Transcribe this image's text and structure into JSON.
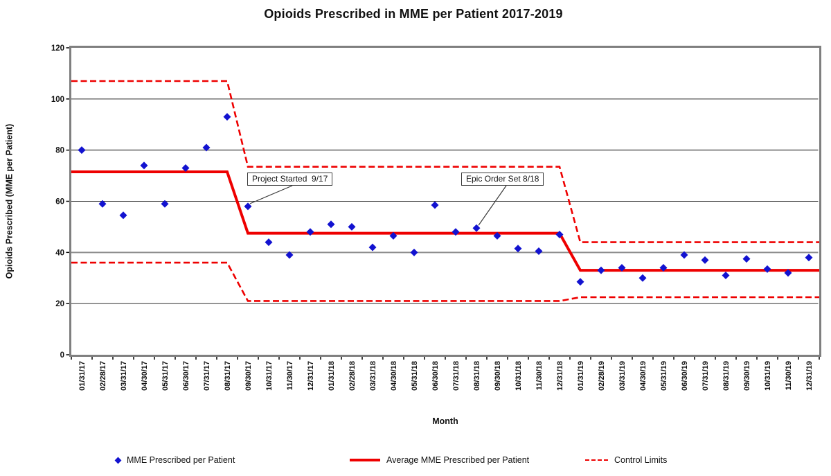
{
  "title": "Opioids Prescribed in MME per Patient 2017-2019",
  "y_axis": {
    "label": "Opioids Prescribed (MME per Patient)",
    "min": 0,
    "max": 120,
    "step": 20,
    "tick_labels": [
      "0",
      "20",
      "40",
      "60",
      "80",
      "100",
      "120"
    ]
  },
  "x_axis": {
    "label": "Month"
  },
  "colors": {
    "points": "#1212D0",
    "lines": "#EE0000",
    "grid": "#2e2e2e",
    "grid_alt": "#8c8c8c",
    "border": "#7f7f7f",
    "tick": "#000000"
  },
  "chart_data": {
    "type": "scatter",
    "title": "Opioids Prescribed in MME per Patient 2017-2019",
    "xlabel": "Month",
    "ylabel": "Opioids Prescribed (MME per Patient)",
    "ylim": [
      0,
      120
    ],
    "grid": true,
    "legend_position": "bottom",
    "categories": [
      "01/31/17",
      "02/28/17",
      "03/31/17",
      "04/30/17",
      "05/31/17",
      "06/30/17",
      "07/31/17",
      "08/31/17",
      "09/30/17",
      "10/31/17",
      "11/30/17",
      "12/31/17",
      "01/31/18",
      "02/28/18",
      "03/31/18",
      "04/30/18",
      "05/31/18",
      "06/30/18",
      "07/31/18",
      "08/31/18",
      "09/30/18",
      "10/31/18",
      "11/30/18",
      "12/31/18",
      "01/31/19",
      "02/28/19",
      "03/31/19",
      "04/30/19",
      "05/31/19",
      "06/30/19",
      "07/31/19",
      "08/31/19",
      "09/30/19",
      "10/31/19",
      "11/30/19",
      "12/31/19"
    ],
    "series": [
      {
        "name": "MME Prescribed per Patient",
        "type": "scatter",
        "marker": "diamond",
        "color": "#1212D0",
        "values": [
          80,
          59,
          54.5,
          74,
          59,
          73,
          81,
          93,
          58,
          44,
          39,
          48,
          51,
          50,
          42,
          46.5,
          40,
          58.5,
          48,
          49.5,
          46.5,
          41.5,
          40.5,
          47,
          28.5,
          33,
          34,
          30,
          34,
          39,
          37,
          31,
          37.5,
          33.5,
          32,
          38
        ]
      },
      {
        "name": "Average MME Prescribed per Patient",
        "type": "step_line",
        "style": "solid",
        "color": "#EE0000",
        "segments": [
          {
            "start_cat": "01/31/17",
            "end_cat": "08/31/17",
            "value": 71.5
          },
          {
            "start_cat": "09/30/17",
            "end_cat": "12/31/18",
            "value": 47.5
          },
          {
            "start_cat": "01/31/19",
            "end_cat": "12/31/19",
            "value": 33
          }
        ]
      },
      {
        "name": "Control Limits",
        "type": "step_line",
        "style": "dashed",
        "color": "#EE0000",
        "upper_segments": [
          {
            "start_cat": "01/31/17",
            "end_cat": "08/31/17",
            "value": 107
          },
          {
            "start_cat": "09/30/17",
            "end_cat": "12/31/18",
            "value": 73.5
          },
          {
            "start_cat": "01/31/19",
            "end_cat": "12/31/19",
            "value": 44
          }
        ],
        "lower_segments": [
          {
            "start_cat": "01/31/17",
            "end_cat": "08/31/17",
            "value": 36
          },
          {
            "start_cat": "09/30/17",
            "end_cat": "12/31/18",
            "value": 21
          },
          {
            "start_cat": "01/31/19",
            "end_cat": "12/31/19",
            "value": 22.5
          }
        ]
      }
    ],
    "annotations": [
      {
        "text": "Project Started  9/17",
        "target_category": "09/30/17",
        "target_value": 58
      },
      {
        "text": "Epic Order Set 8/18",
        "target_category": "08/31/18",
        "target_value": 49.5
      }
    ]
  },
  "legend": [
    {
      "label": "MME Prescribed per Patient",
      "marker": "blue-diamond"
    },
    {
      "label": "Average MME Prescribed per Patient",
      "marker": "red-solid-line"
    },
    {
      "label": "Control Limits",
      "marker": "red-dashed-line"
    }
  ]
}
